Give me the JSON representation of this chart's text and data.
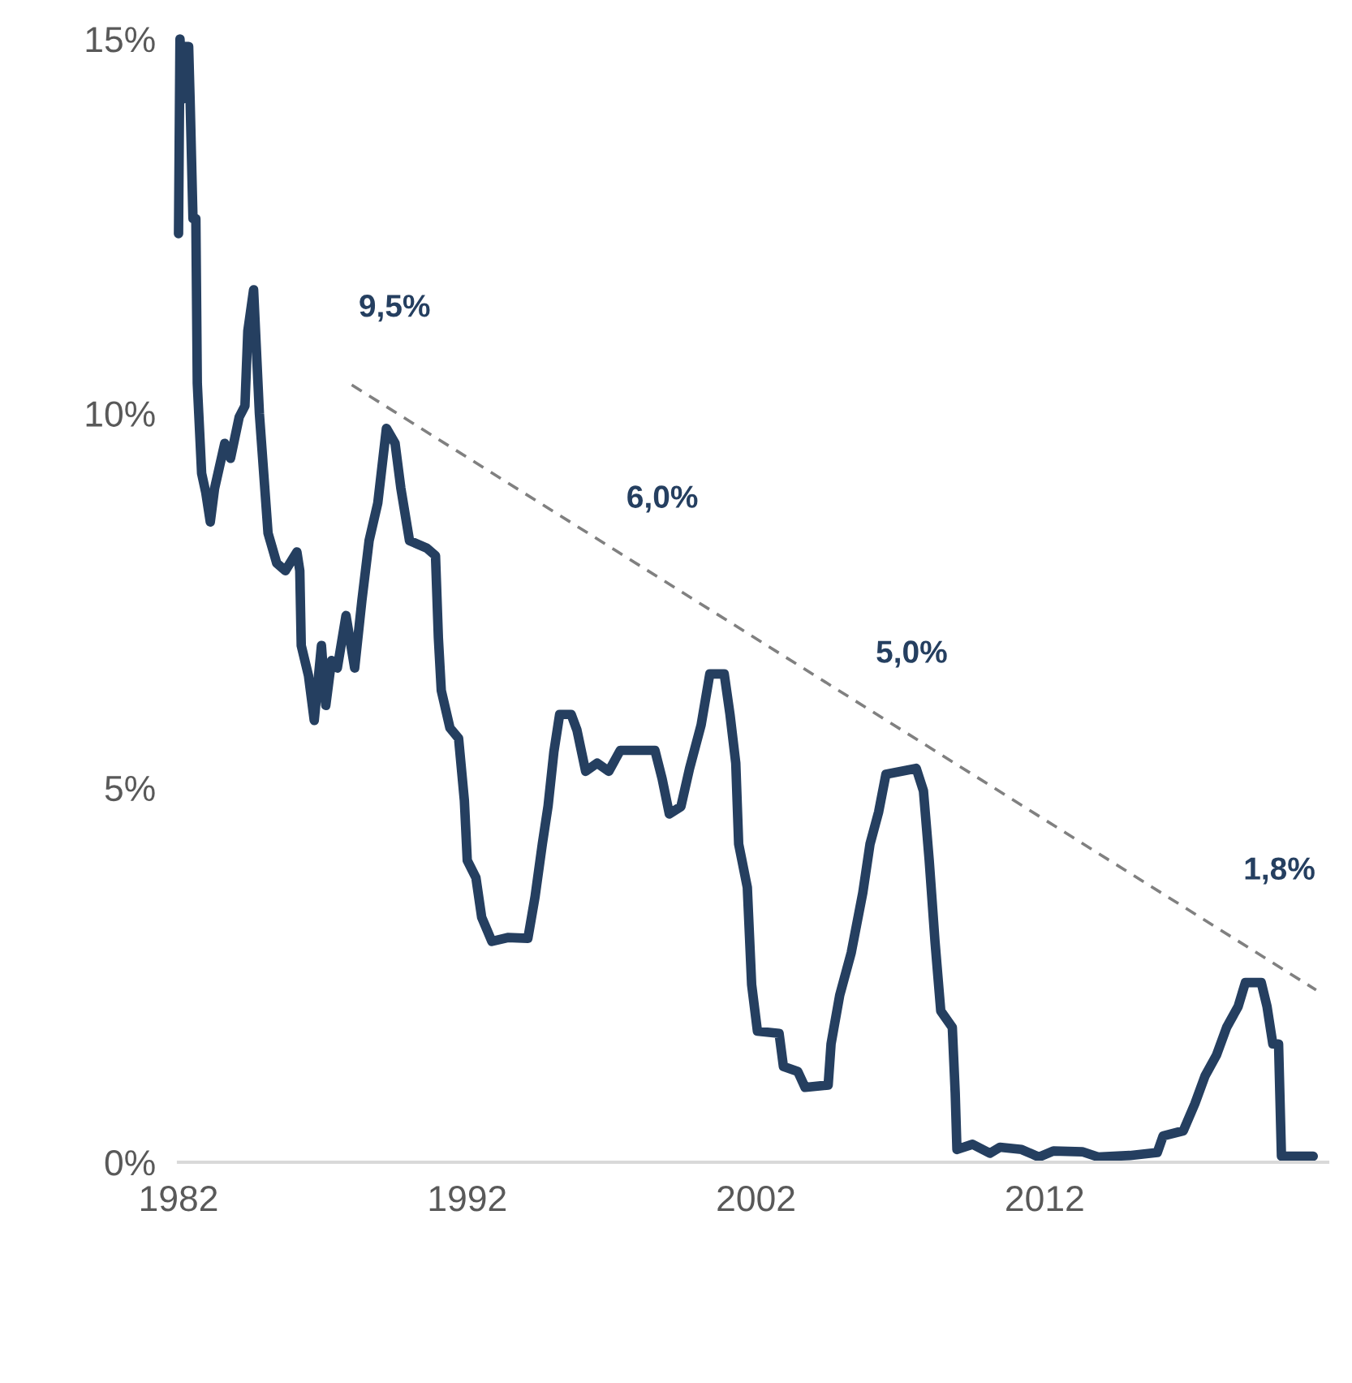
{
  "chart_data": {
    "type": "line",
    "annotations": [
      "9,5%",
      "6,0%",
      "5,0%",
      "1,8%"
    ],
    "xlim": [
      1982,
      2021.8
    ],
    "xticks": [
      1982,
      1992,
      2002,
      2012
    ],
    "ylim": [
      0,
      15
    ],
    "yticks": [
      {
        "value": 0,
        "label": "0%"
      },
      {
        "value": 5,
        "label": "5%"
      },
      {
        "value": 10,
        "label": "10%"
      },
      {
        "value": 15,
        "label": "15%"
      }
    ],
    "grid": false,
    "series": [
      {
        "color": "#253f60",
        "line_style": "solid",
        "x": [
          1982.0,
          1982.05,
          1982.15,
          1982.2,
          1982.35,
          1982.4,
          1982.5,
          1982.6,
          1982.65,
          1982.8,
          1982.94,
          1983.1,
          1983.25,
          1983.6,
          1983.8,
          1984.1,
          1984.3,
          1984.4,
          1984.6,
          1984.8,
          1985.1,
          1985.4,
          1985.7,
          1986.1,
          1986.2,
          1986.25,
          1986.5,
          1986.7,
          1986.95,
          1987.1,
          1987.3,
          1987.5,
          1987.8,
          1988.1,
          1988.35,
          1988.6,
          1988.9,
          1989.2,
          1989.5,
          1989.7,
          1990.0,
          1990.6,
          1990.9,
          1991.0,
          1991.1,
          1991.4,
          1991.7,
          1991.9,
          1992.0,
          1992.3,
          1992.5,
          1992.85,
          1993.4,
          1994.1,
          1994.35,
          1994.6,
          1994.8,
          1995.0,
          1995.2,
          1995.6,
          1995.8,
          1996.1,
          1996.5,
          1996.9,
          1997.3,
          1998.5,
          1998.75,
          1999.0,
          1999.4,
          1999.7,
          2000.1,
          2000.4,
          2000.9,
          2001.1,
          2001.3,
          2001.4,
          2001.7,
          2001.85,
          2002.05,
          2002.8,
          2002.95,
          2003.45,
          2003.7,
          2004.5,
          2004.6,
          2004.9,
          2005.3,
          2005.7,
          2005.95,
          2006.25,
          2006.5,
          2007.55,
          2007.8,
          2008.0,
          2008.2,
          2008.4,
          2008.8,
          2008.9,
          2008.96,
          2009.5,
          2010.1,
          2010.45,
          2011.2,
          2011.8,
          2012.3,
          2013.3,
          2013.85,
          2014.95,
          2015.9,
          2016.1,
          2016.8,
          2017.2,
          2017.55,
          2017.95,
          2018.3,
          2018.7,
          2018.95,
          2019.5,
          2019.7,
          2019.9,
          2020.1,
          2020.2,
          2021.3
        ],
        "values": [
          12.4,
          15.0,
          14.2,
          14.9,
          14.9,
          14.2,
          12.6,
          12.6,
          10.4,
          9.2,
          8.95,
          8.55,
          9.0,
          9.6,
          9.4,
          9.95,
          10.1,
          11.1,
          11.65,
          10.0,
          8.4,
          8.0,
          7.9,
          8.15,
          7.9,
          6.9,
          6.5,
          5.9,
          6.9,
          6.1,
          6.7,
          6.6,
          7.3,
          6.6,
          7.5,
          8.3,
          8.8,
          9.8,
          9.6,
          9.0,
          8.3,
          8.2,
          8.1,
          7.0,
          6.3,
          5.8,
          5.66,
          4.83,
          4.03,
          3.8,
          3.27,
          2.95,
          3.0,
          2.99,
          3.55,
          4.25,
          4.76,
          5.48,
          5.98,
          5.98,
          5.77,
          5.22,
          5.33,
          5.22,
          5.5,
          5.5,
          5.12,
          4.65,
          4.75,
          5.26,
          5.84,
          6.52,
          6.52,
          5.98,
          5.33,
          4.25,
          3.67,
          2.37,
          1.75,
          1.72,
          1.28,
          1.21,
          1.0,
          1.03,
          1.58,
          2.23,
          2.8,
          3.6,
          4.25,
          4.68,
          5.18,
          5.26,
          4.96,
          4.03,
          2.95,
          2.02,
          1.8,
          0.93,
          0.17,
          0.24,
          0.12,
          0.2,
          0.17,
          0.07,
          0.15,
          0.14,
          0.07,
          0.09,
          0.13,
          0.35,
          0.42,
          0.78,
          1.15,
          1.43,
          1.8,
          2.08,
          2.4,
          2.4,
          2.08,
          1.58,
          1.58,
          0.08,
          0.08
        ]
      },
      {
        "type": "line",
        "color": "#808080",
        "line_style": "dashed",
        "x": [
          1988.0,
          2021.4
        ],
        "values": [
          10.38,
          2.3
        ]
      }
    ]
  }
}
